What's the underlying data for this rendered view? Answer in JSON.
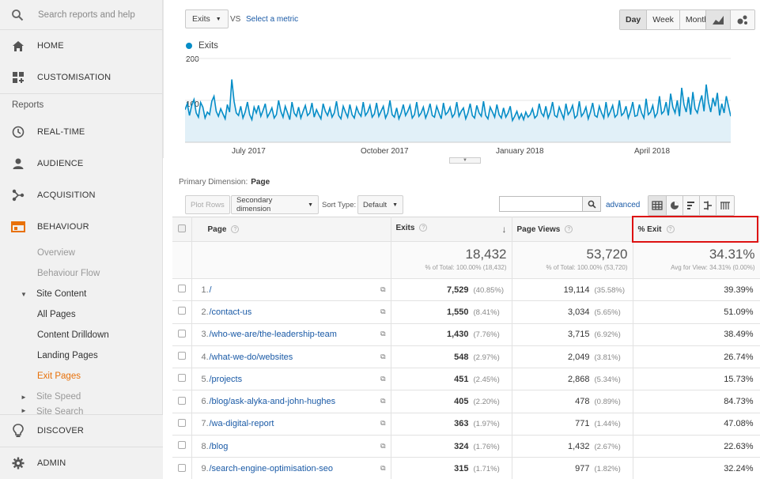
{
  "sidebar": {
    "search_placeholder": "Search reports and help",
    "home": "HOME",
    "customisation": "CUSTOMISATION",
    "reports_label": "Reports",
    "realtime": "REAL-TIME",
    "audience": "AUDIENCE",
    "acquisition": "ACQUISITION",
    "behaviour": "BEHAVIOUR",
    "overview": "Overview",
    "behaviour_flow": "Behaviour Flow",
    "site_content": "Site Content",
    "all_pages": "All Pages",
    "content_drilldown": "Content Drilldown",
    "landing_pages": "Landing Pages",
    "exit_pages": "Exit Pages",
    "site_speed": "Site Speed",
    "site_search": "Site Search",
    "discover": "DISCOVER",
    "admin": "ADMIN",
    "accent_color": "#e8710a"
  },
  "controls": {
    "metric": "Exits",
    "vs": "VS",
    "select_metric": "Select a metric",
    "day": "Day",
    "week": "Week",
    "month": "Month"
  },
  "chart_data": {
    "type": "line",
    "series": [
      {
        "name": "Exits",
        "color": "#058dc7"
      }
    ],
    "y_ticks": [
      "200",
      "100"
    ],
    "x_ticks": [
      "July 2017",
      "October 2017",
      "January 2018",
      "April 2018"
    ],
    "ylim": [
      0,
      200
    ],
    "values": [
      78,
      92,
      64,
      88,
      102,
      70,
      60,
      95,
      84,
      58,
      72,
      66,
      98,
      110,
      74,
      62,
      80,
      68,
      56,
      90,
      72,
      150,
      98,
      70,
      64,
      86,
      58,
      72,
      96,
      66,
      54,
      84,
      70,
      88,
      62,
      76,
      92,
      60,
      70,
      82,
      58,
      66,
      100,
      74,
      60,
      86,
      70,
      54,
      96,
      70,
      62,
      84,
      58,
      74,
      88,
      64,
      70,
      94,
      60,
      78,
      66,
      56,
      92,
      74,
      64,
      82,
      60,
      70,
      98,
      64,
      56,
      86,
      72,
      60,
      90,
      66,
      58,
      84,
      70,
      62,
      96,
      64,
      72,
      88,
      60,
      68,
      94,
      62,
      74,
      86,
      58,
      70,
      100,
      66,
      60,
      82,
      56,
      70,
      90,
      64,
      74,
      88,
      58,
      66,
      96,
      62,
      70,
      84,
      58,
      72,
      92,
      64,
      60,
      86,
      70,
      56,
      94,
      66,
      72,
      84,
      60,
      68,
      96,
      62,
      74,
      82,
      56,
      70,
      92,
      64,
      58,
      88,
      70,
      62,
      98,
      64,
      56,
      84,
      72,
      60,
      90,
      66,
      58,
      82,
      60,
      70,
      86,
      52,
      62,
      74,
      56,
      68,
      54,
      72,
      60,
      66,
      80,
      58,
      64,
      92,
      70,
      62,
      86,
      58,
      72,
      96,
      64,
      60,
      84,
      70,
      56,
      92,
      66,
      74,
      88,
      58,
      64,
      98,
      62,
      70,
      84,
      56,
      72,
      94,
      64,
      60,
      86,
      70,
      58,
      96,
      62,
      74,
      88,
      60,
      66,
      100,
      64,
      70,
      86,
      58,
      74,
      96,
      62,
      64,
      90,
      70,
      58,
      104,
      66,
      72,
      88,
      60,
      70,
      110,
      68,
      74,
      96,
      64,
      116,
      84,
      70,
      100,
      62,
      130,
      90,
      72,
      108,
      66,
      120,
      80,
      70,
      94,
      112,
      74,
      138,
      96,
      72,
      106,
      86,
      118,
      64,
      92,
      70,
      110,
      86,
      62
    ]
  },
  "report": {
    "primary_dimension_label": "Primary Dimension:",
    "primary_dimension": "Page",
    "plot_rows": "Plot Rows",
    "secondary_dimension": "Secondary dimension",
    "sort_type_label": "Sort Type:",
    "sort_type": "Default",
    "advanced": "advanced"
  },
  "table": {
    "headers": {
      "page": "Page",
      "exits": "Exits",
      "page_views": "Page Views",
      "exit_pct": "% Exit"
    },
    "totals": {
      "exits": "18,432",
      "exits_sub": "% of Total: 100.00% (18,432)",
      "page_views": "53,720",
      "page_views_sub": "% of Total: 100.00% (53,720)",
      "exit_pct": "34.31%",
      "exit_pct_sub": "Avg for View: 34.31% (0.00%)"
    },
    "rows": [
      {
        "num": "1.",
        "page": "/",
        "exits": "7,529",
        "exits_pct": "(40.85%)",
        "views": "19,114",
        "views_pct": "(35.58%)",
        "exit_rate": "39.39%"
      },
      {
        "num": "2.",
        "page": "/contact-us",
        "exits": "1,550",
        "exits_pct": "(8.41%)",
        "views": "3,034",
        "views_pct": "(5.65%)",
        "exit_rate": "51.09%"
      },
      {
        "num": "3.",
        "page": "/who-we-are/the-leadership-team",
        "exits": "1,430",
        "exits_pct": "(7.76%)",
        "views": "3,715",
        "views_pct": "(6.92%)",
        "exit_rate": "38.49%"
      },
      {
        "num": "4.",
        "page": "/what-we-do/websites",
        "exits": "548",
        "exits_pct": "(2.97%)",
        "views": "2,049",
        "views_pct": "(3.81%)",
        "exit_rate": "26.74%"
      },
      {
        "num": "5.",
        "page": "/projects",
        "exits": "451",
        "exits_pct": "(2.45%)",
        "views": "2,868",
        "views_pct": "(5.34%)",
        "exit_rate": "15.73%"
      },
      {
        "num": "6.",
        "page": "/blog/ask-alyka-and-john-hughes",
        "exits": "405",
        "exits_pct": "(2.20%)",
        "views": "478",
        "views_pct": "(0.89%)",
        "exit_rate": "84.73%"
      },
      {
        "num": "7.",
        "page": "/wa-digital-report",
        "exits": "363",
        "exits_pct": "(1.97%)",
        "views": "771",
        "views_pct": "(1.44%)",
        "exit_rate": "47.08%"
      },
      {
        "num": "8.",
        "page": "/blog",
        "exits": "324",
        "exits_pct": "(1.76%)",
        "views": "1,432",
        "views_pct": "(2.67%)",
        "exit_rate": "22.63%"
      },
      {
        "num": "9.",
        "page": "/search-engine-optimisation-seo",
        "exits": "315",
        "exits_pct": "(1.71%)",
        "views": "977",
        "views_pct": "(1.82%)",
        "exit_rate": "32.24%"
      }
    ]
  }
}
